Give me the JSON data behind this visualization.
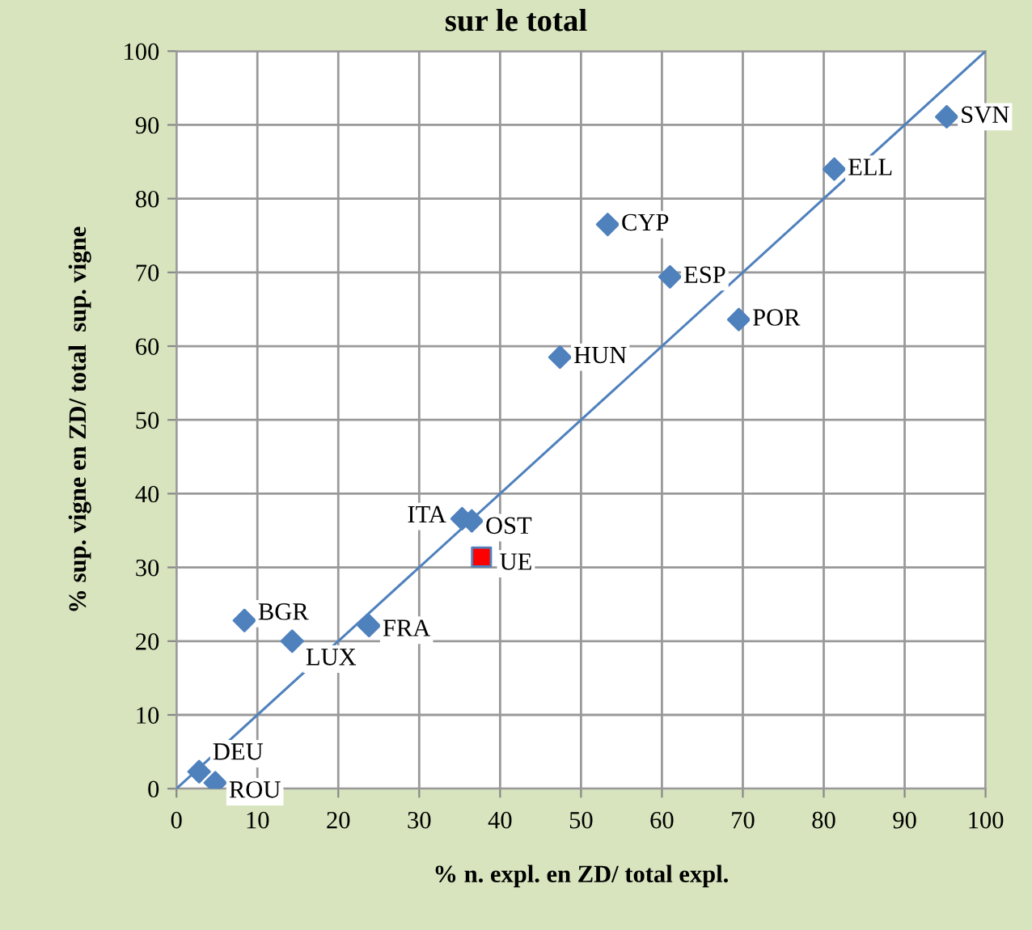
{
  "chart_data": {
    "type": "scatter",
    "title": "sur le total",
    "xlabel": "% n. expl. en ZD/ total expl.",
    "ylabel": "% sup. vigne en ZD/ total  sup. vigne",
    "xlim": [
      0,
      100
    ],
    "ylim": [
      0,
      100
    ],
    "xticks": [
      0,
      10,
      20,
      30,
      40,
      50,
      60,
      70,
      80,
      90,
      100
    ],
    "yticks": [
      0,
      10,
      20,
      30,
      40,
      50,
      60,
      70,
      80,
      90,
      100
    ],
    "grid": true,
    "legend": false,
    "series": [
      {
        "marker": "diamond",
        "color": "#4f81bd",
        "x": [
          95.2,
          81.3,
          53.3,
          61.0,
          69.5,
          47.4,
          35.3,
          36.5,
          8.4,
          14.3,
          23.8,
          2.8,
          4.8
        ],
        "values": [
          91.1,
          84.0,
          76.5,
          69.4,
          63.6,
          58.5,
          36.6,
          36.3,
          22.8,
          20.0,
          22.1,
          2.3,
          0.8
        ]
      },
      {
        "marker": "square",
        "color": "#ff0000",
        "x": [
          37.7
        ],
        "values": [
          31.4
        ]
      },
      {
        "type": "line",
        "marker": "none",
        "color": "#4f81bd",
        "x": [
          0,
          100
        ],
        "values": [
          0,
          100
        ]
      }
    ],
    "annotations": [
      {
        "text": "SVN",
        "x": 95.2,
        "y": 91.1
      },
      {
        "text": "ELL",
        "x": 81.3,
        "y": 84.0
      },
      {
        "text": "CYP",
        "x": 53.3,
        "y": 76.5
      },
      {
        "text": "ESP",
        "x": 61.0,
        "y": 69.4
      },
      {
        "text": "POR",
        "x": 69.5,
        "y": 63.6
      },
      {
        "text": "HUN",
        "x": 47.4,
        "y": 58.5
      },
      {
        "text": "ITA",
        "x": 35.3,
        "y": 36.6
      },
      {
        "text": "OST",
        "x": 36.5,
        "y": 36.3
      },
      {
        "text": "UE",
        "x": 37.7,
        "y": 31.4
      },
      {
        "text": "BGR",
        "x": 8.4,
        "y": 22.8
      },
      {
        "text": "LUX",
        "x": 14.3,
        "y": 20.0
      },
      {
        "text": "FRA",
        "x": 23.8,
        "y": 22.1
      },
      {
        "text": "DEU",
        "x": 2.8,
        "y": 2.3
      },
      {
        "text": "ROU",
        "x": 4.8,
        "y": 0.8
      }
    ]
  }
}
